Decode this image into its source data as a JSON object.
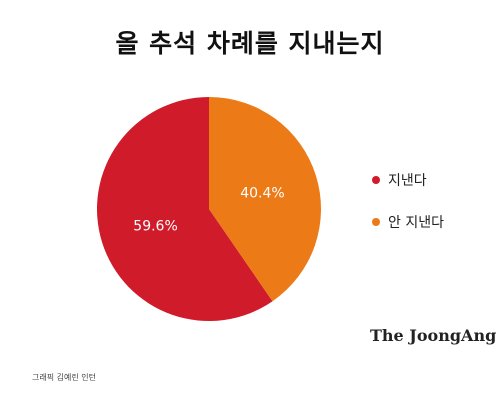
{
  "title": "올 추석 차례를 지내는지",
  "brand": "The JoongAng",
  "credit": "그래픽 김예린 인턴",
  "chart_data": {
    "type": "pie",
    "title": "올 추석 차례를 지내는지",
    "slices": [
      {
        "label": "지낸다",
        "value": 59.6,
        "display": "59.6%",
        "color": "#cf1b2a"
      },
      {
        "label": "안 지낸다",
        "value": 40.4,
        "display": "40.4%",
        "color": "#ec7a16"
      }
    ],
    "legend_position": "right",
    "start": "12 o'clock",
    "direction": "counterclockwise"
  }
}
